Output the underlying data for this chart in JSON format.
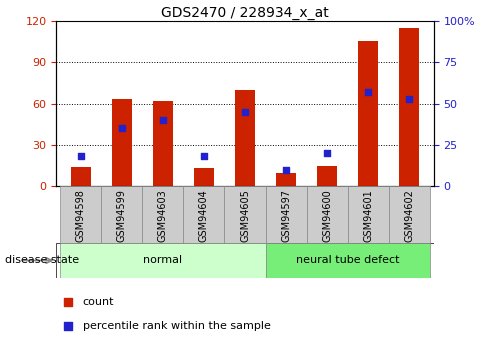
{
  "title": "GDS2470 / 228934_x_at",
  "samples": [
    "GSM94598",
    "GSM94599",
    "GSM94603",
    "GSM94604",
    "GSM94605",
    "GSM94597",
    "GSM94600",
    "GSM94601",
    "GSM94602"
  ],
  "count_values": [
    14,
    63,
    62,
    13,
    70,
    10,
    15,
    105,
    115
  ],
  "percentile_values": [
    18,
    35,
    40,
    18,
    45,
    10,
    20,
    57,
    53
  ],
  "bar_color": "#cc2200",
  "square_color": "#2222cc",
  "normal_indices": [
    0,
    1,
    2,
    3,
    4
  ],
  "defect_indices": [
    5,
    6,
    7,
    8
  ],
  "normal_label": "normal",
  "defect_label": "neural tube defect",
  "disease_state_label": "disease state",
  "group_normal_color": "#ccffcc",
  "group_defect_color": "#77ee77",
  "left_yticks": [
    0,
    30,
    60,
    90,
    120
  ],
  "right_yticks": [
    0,
    25,
    50,
    75,
    100
  ],
  "ylim_left": [
    0,
    120
  ],
  "ylim_right": [
    0,
    100
  ],
  "legend_count": "count",
  "legend_percentile": "percentile rank within the sample",
  "tick_bg_color": "#cccccc",
  "grid_color": "black"
}
